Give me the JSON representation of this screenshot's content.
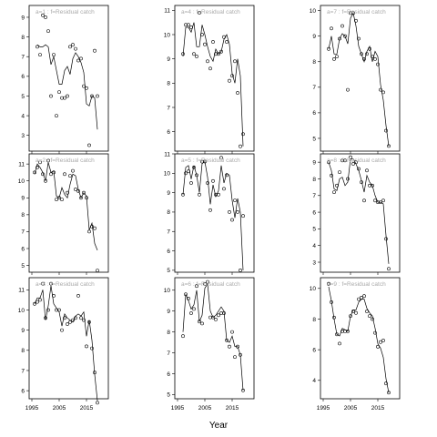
{
  "chart_data": {
    "type": "scatter",
    "xlabel": "Year",
    "grid": false,
    "panels": [
      {
        "label": "a=1 : f=Residual catch",
        "xlim": [
          1994,
          2023
        ],
        "ylim": [
          2.2,
          9.6
        ],
        "yticks": [
          3,
          4,
          5,
          6,
          7,
          8,
          9
        ],
        "x": [
          1997,
          1998,
          1999,
          2000,
          2001,
          2002,
          2003,
          2004,
          2005,
          2006,
          2007,
          2008,
          2009,
          2010,
          2011,
          2012,
          2013,
          2014,
          2015,
          2016,
          2017,
          2018,
          2019
        ],
        "points": [
          7.5,
          7.1,
          9.1,
          9.0,
          8.3,
          5.0,
          7.1,
          4.0,
          5.2,
          4.9,
          4.9,
          5.0,
          7.5,
          7.6,
          7.4,
          6.8,
          6.9,
          5.5,
          5.4,
          2.5,
          5.0,
          7.3,
          5.0
        ],
        "line": [
          7.6,
          7.5,
          7.5,
          7.6,
          7.5,
          6.6,
          7.0,
          6.3,
          5.6,
          5.6,
          6.3,
          6.5,
          6.1,
          6.9,
          7.2,
          7.0,
          6.7,
          6.2,
          4.6,
          4.5,
          5.0,
          4.9,
          3.3
        ]
      },
      {
        "label": "a=4 : f=Residual catch",
        "xlim": [
          1994,
          2023
        ],
        "ylim": [
          5.2,
          11.2
        ],
        "yticks": [
          6,
          7,
          8,
          9,
          10,
          11
        ],
        "x": [
          1997,
          1998,
          1999,
          2000,
          2001,
          2002,
          2003,
          2004,
          2005,
          2006,
          2007,
          2008,
          2009,
          2010,
          2011,
          2012,
          2013,
          2014,
          2015,
          2016,
          2017,
          2018,
          2019
        ],
        "points": [
          9.2,
          10.4,
          10.4,
          10.3,
          9.2,
          9.1,
          10.9,
          10.0,
          9.6,
          8.9,
          8.6,
          9.7,
          9.2,
          9.2,
          9.3,
          9.9,
          9.7,
          8.1,
          8.3,
          8.9,
          7.6,
          5.4,
          5.9
        ],
        "line": [
          9.1,
          10.3,
          10.3,
          10.1,
          10.5,
          9.5,
          9.5,
          10.4,
          10.0,
          9.5,
          9.1,
          8.9,
          9.4,
          9.2,
          9.3,
          9.8,
          10.0,
          9.6,
          8.4,
          8.0,
          9.0,
          8.3,
          5.4
        ]
      },
      {
        "label": "a=7 : f=Residual catch",
        "xlim": [
          1994,
          2023
        ],
        "ylim": [
          4.5,
          10.2
        ],
        "yticks": [
          5,
          6,
          7,
          8,
          9,
          10
        ],
        "x": [
          1997,
          1998,
          1999,
          2000,
          2001,
          2002,
          2003,
          2004,
          2005,
          2006,
          2007,
          2008,
          2009,
          2010,
          2011,
          2012,
          2013,
          2014,
          2015,
          2016,
          2017,
          2018,
          2019
        ],
        "points": [
          8.5,
          9.3,
          8.1,
          8.2,
          8.9,
          9.4,
          9.0,
          6.9,
          9.9,
          9.9,
          9.6,
          8.9,
          8.3,
          8.1,
          8.3,
          8.5,
          8.2,
          8.1,
          7.9,
          6.9,
          6.8,
          5.3,
          4.7
        ],
        "line": [
          8.5,
          9.0,
          8.3,
          8.3,
          8.9,
          9.1,
          9.0,
          8.7,
          9.7,
          9.9,
          9.4,
          8.6,
          8.3,
          8.0,
          8.4,
          8.6,
          8.0,
          8.4,
          8.2,
          7.1,
          6.5,
          5.5,
          4.7
        ]
      },
      {
        "label": "a=2 : f=Residual catch",
        "xlim": [
          1994,
          2023
        ],
        "ylim": [
          4.6,
          11.6
        ],
        "yticks": [
          5,
          6,
          7,
          8,
          9,
          10,
          11
        ],
        "x": [
          1996,
          1997,
          1998,
          1999,
          2000,
          2001,
          2002,
          2003,
          2004,
          2005,
          2006,
          2007,
          2008,
          2009,
          2010,
          2011,
          2012,
          2013,
          2014,
          2015,
          2016,
          2017,
          2018,
          2019
        ],
        "points": [
          10.5,
          10.8,
          11.1,
          10.4,
          10.0,
          11.2,
          10.4,
          10.5,
          8.9,
          9.0,
          8.9,
          10.4,
          9.3,
          10.3,
          10.6,
          9.5,
          9.4,
          9.0,
          9.3,
          9.0,
          7.0,
          7.3,
          7.2,
          4.7
        ],
        "line": [
          10.4,
          11.0,
          10.8,
          10.5,
          10.0,
          11.1,
          10.5,
          10.6,
          9.1,
          9.0,
          9.6,
          9.2,
          9.0,
          9.8,
          10.4,
          10.3,
          9.5,
          9.0,
          9.3,
          9.1,
          7.1,
          7.5,
          6.3,
          5.9
        ]
      },
      {
        "label": "a=5 : f=Residual catch",
        "xlim": [
          1994,
          2023
        ],
        "ylim": [
          4.9,
          11.0
        ],
        "yticks": [
          5,
          6,
          7,
          8,
          9,
          10,
          11
        ],
        "x": [
          1997,
          1998,
          1999,
          2000,
          2001,
          2002,
          2003,
          2004,
          2005,
          2006,
          2007,
          2008,
          2009,
          2010,
          2011,
          2012,
          2013,
          2014,
          2015,
          2016,
          2017,
          2018,
          2019
        ],
        "points": [
          8.9,
          10.0,
          10.1,
          9.5,
          10.3,
          9.9,
          8.9,
          10.6,
          10.6,
          9.5,
          8.1,
          9.6,
          8.9,
          8.9,
          10.8,
          9.2,
          9.9,
          8.0,
          7.6,
          8.6,
          8.0,
          5.0,
          7.8
        ],
        "line": [
          8.9,
          10.3,
          10.4,
          9.7,
          10.4,
          9.9,
          9.0,
          10.5,
          10.6,
          9.8,
          8.4,
          9.4,
          8.8,
          9.1,
          10.4,
          9.5,
          10.0,
          9.9,
          8.6,
          7.7,
          8.7,
          8.0,
          5.0
        ]
      },
      {
        "label": "a=8 : f=Residual catch",
        "xlim": [
          1994,
          2023
        ],
        "ylim": [
          2.4,
          9.5
        ],
        "yticks": [
          3,
          4,
          5,
          6,
          7,
          8,
          9
        ],
        "x": [
          1997,
          1998,
          1999,
          2000,
          2001,
          2002,
          2003,
          2004,
          2005,
          2006,
          2007,
          2008,
          2009,
          2010,
          2011,
          2012,
          2013,
          2014,
          2015,
          2016,
          2017,
          2018,
          2019
        ],
        "points": [
          9.0,
          8.2,
          7.2,
          7.6,
          8.4,
          9.1,
          9.1,
          8.0,
          9.3,
          8.9,
          9.0,
          8.6,
          7.8,
          6.7,
          8.5,
          7.6,
          7.6,
          6.7,
          6.6,
          6.6,
          6.7,
          4.4,
          2.6
        ],
        "line": [
          9.0,
          8.5,
          7.4,
          7.3,
          8.0,
          8.1,
          7.6,
          7.8,
          9.2,
          9.2,
          8.9,
          8.5,
          7.9,
          7.2,
          8.2,
          7.8,
          7.6,
          7.0,
          6.6,
          6.6,
          6.5,
          4.6,
          2.9
        ]
      },
      {
        "label": "a=3 : f=Residual catch",
        "xlim": [
          1994,
          2023
        ],
        "ylim": [
          5.6,
          11.6
        ],
        "yticks": [
          6,
          7,
          8,
          9,
          10,
          11
        ],
        "x": [
          1996,
          1997,
          1998,
          1999,
          2000,
          2001,
          2002,
          2003,
          2004,
          2005,
          2006,
          2007,
          2008,
          2009,
          2010,
          2011,
          2012,
          2013,
          2014,
          2015,
          2016,
          2017,
          2018,
          2019
        ],
        "points": [
          10.3,
          10.4,
          10.5,
          11.3,
          9.6,
          10.0,
          11.3,
          10.7,
          10.0,
          10.0,
          9.0,
          9.6,
          9.3,
          9.4,
          9.5,
          9.6,
          10.7,
          9.6,
          9.5,
          8.2,
          9.4,
          8.1,
          6.9,
          5.4
        ],
        "line": [
          10.3,
          10.6,
          10.6,
          11.0,
          9.5,
          10.2,
          11.2,
          10.3,
          10.1,
          9.9,
          9.2,
          9.8,
          9.6,
          9.5,
          9.4,
          9.7,
          9.8,
          9.7,
          9.9,
          8.7,
          9.5,
          8.5,
          6.8,
          5.5
        ]
      },
      {
        "label": "a=6 : f=Residual catch",
        "xlim": [
          1994,
          2023
        ],
        "ylim": [
          4.8,
          10.6
        ],
        "yticks": [
          5,
          6,
          7,
          8,
          9,
          10
        ],
        "x": [
          1997,
          1998,
          1999,
          2000,
          2001,
          2002,
          2003,
          2004,
          2005,
          2006,
          2007,
          2008,
          2009,
          2010,
          2011,
          2012,
          2013,
          2014,
          2015,
          2016,
          2017,
          2018,
          2019
        ],
        "points": [
          7.8,
          9.8,
          9.6,
          8.9,
          9.1,
          10.2,
          8.5,
          8.4,
          10.3,
          10.4,
          8.7,
          8.7,
          8.6,
          8.8,
          8.9,
          8.9,
          7.6,
          7.3,
          8.0,
          6.8,
          7.3,
          6.9,
          5.2
        ],
        "line": [
          8.0,
          9.8,
          9.5,
          9.1,
          9.3,
          10.0,
          8.5,
          8.8,
          10.1,
          10.3,
          9.0,
          8.7,
          8.8,
          9.0,
          9.2,
          9.0,
          7.6,
          7.5,
          7.8,
          7.3,
          7.3,
          6.9,
          5.2
        ]
      },
      {
        "label": "a=9 : f=Residual catch",
        "xlim": [
          1994,
          2023
        ],
        "ylim": [
          2.8,
          10.7
        ],
        "yticks": [
          4,
          6,
          8,
          10
        ],
        "x": [
          1997,
          1998,
          1999,
          2000,
          2001,
          2002,
          2003,
          2004,
          2005,
          2006,
          2007,
          2008,
          2009,
          2010,
          2011,
          2012,
          2013,
          2014,
          2015,
          2016,
          2017,
          2018,
          2019
        ],
        "points": [
          10.3,
          9.1,
          8.1,
          7.0,
          6.4,
          7.2,
          7.2,
          7.2,
          8.2,
          8.5,
          8.4,
          9.3,
          9.4,
          9.5,
          8.5,
          8.2,
          8.0,
          7.1,
          6.2,
          6.5,
          6.6,
          3.8,
          3.2
        ],
        "line": [
          10.1,
          9.2,
          8.0,
          7.0,
          6.9,
          7.4,
          7.3,
          7.2,
          8.2,
          8.6,
          8.6,
          9.1,
          9.3,
          9.3,
          8.7,
          8.4,
          8.2,
          7.4,
          6.4,
          6.1,
          5.5,
          4.1,
          3.2
        ]
      }
    ],
    "xticks": [
      1995,
      2005,
      2015
    ]
  }
}
